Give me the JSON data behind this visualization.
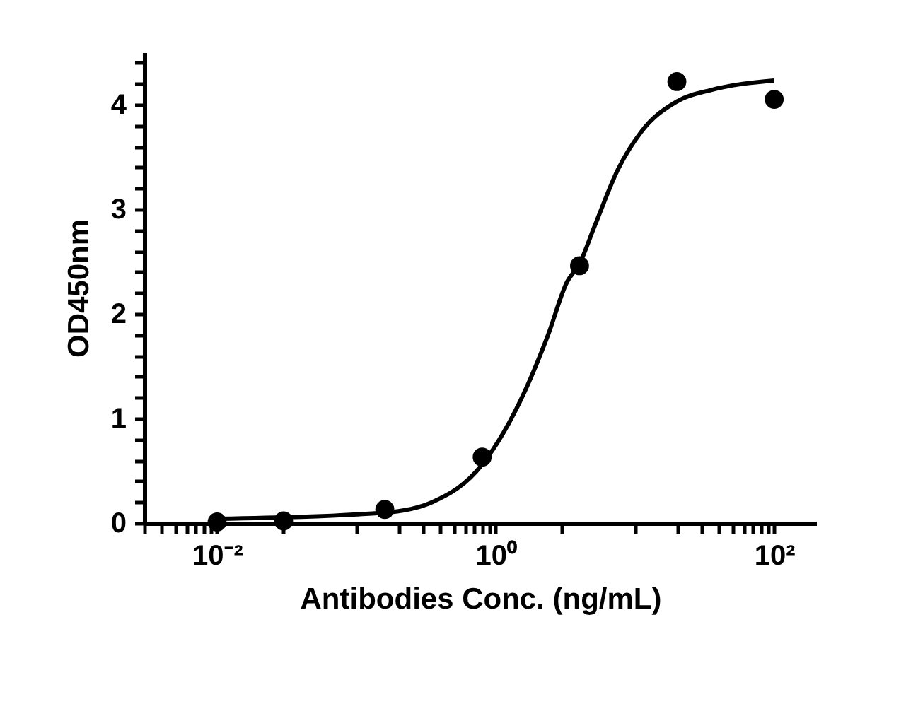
{
  "chart_data": {
    "type": "scatter",
    "xlabel": "Antibodies Conc. (ng/mL)",
    "ylabel": "OD450nm",
    "log": "x",
    "grid": false,
    "marker": "circle",
    "xlim": [
      0.003,
      200
    ],
    "xticks": [
      {
        "value": 0.003,
        "label": null
      },
      {
        "value": 0.004,
        "label": null
      },
      {
        "value": 0.005,
        "label": null
      },
      {
        "value": 0.006,
        "label": null
      },
      {
        "value": 0.007,
        "label": null
      },
      {
        "value": 0.008,
        "label": null
      },
      {
        "value": 0.009,
        "label": null
      },
      {
        "value": 0.01,
        "label": "10⁻²"
      },
      {
        "value": 0.03,
        "label": null
      },
      {
        "value": 0.1,
        "label": null
      },
      {
        "value": 0.2,
        "label": null
      },
      {
        "value": 0.3,
        "label": null
      },
      {
        "value": 0.4,
        "label": null
      },
      {
        "value": 0.5,
        "label": null
      },
      {
        "value": 0.6,
        "label": null
      },
      {
        "value": 0.7,
        "label": null
      },
      {
        "value": 0.8,
        "label": null
      },
      {
        "value": 0.9,
        "label": null
      },
      {
        "value": 1,
        "label": "10⁰"
      },
      {
        "value": 3,
        "label": null
      },
      {
        "value": 10,
        "label": null
      },
      {
        "value": 20,
        "label": null
      },
      {
        "value": 30,
        "label": null
      },
      {
        "value": 40,
        "label": null
      },
      {
        "value": 50,
        "label": null
      },
      {
        "value": 60,
        "label": null
      },
      {
        "value": 70,
        "label": null
      },
      {
        "value": 80,
        "label": null
      },
      {
        "value": 90,
        "label": null
      },
      {
        "value": 100,
        "label": "10²"
      }
    ],
    "ylim": [
      0,
      4.5
    ],
    "yticks": [
      0,
      {
        "value": 0.2,
        "label": null
      },
      {
        "value": 0.4,
        "label": null
      },
      {
        "value": 0.6,
        "label": null
      },
      {
        "value": 0.8,
        "label": null
      },
      1,
      {
        "value": 1.2,
        "label": null
      },
      {
        "value": 1.4,
        "label": null
      },
      {
        "value": 1.6,
        "label": null
      },
      {
        "value": 1.8,
        "label": null
      },
      2,
      {
        "value": 2.2,
        "label": null
      },
      {
        "value": 2.4,
        "label": null
      },
      {
        "value": 2.6,
        "label": null
      },
      {
        "value": 2.8,
        "label": null
      },
      3,
      {
        "value": 3.2,
        "label": null
      },
      {
        "value": 3.4,
        "label": null
      },
      {
        "value": 3.6,
        "label": null
      },
      {
        "value": 3.8,
        "label": null
      },
      4,
      {
        "value": 4.2,
        "label": null
      },
      {
        "value": 4.4,
        "label": null
      }
    ],
    "series": [
      {
        "color": "#000000",
        "x": [
          0.01,
          0.03,
          0.16,
          0.8,
          4,
          20,
          100
        ],
        "values": [
          0.01,
          0.02,
          0.13,
          0.63,
          2.46,
          4.22,
          4.05
        ]
      },
      {
        "type": "line",
        "color": "#000000",
        "marker": "none",
        "line_style": "solid",
        "x": [
          0.01,
          0.16,
          0.35,
          0.8,
          1.62,
          2.38,
          3.24,
          4,
          5.14,
          7.55,
          11.1,
          20,
          35.3,
          100
        ],
        "values": [
          0.04,
          0.1,
          0.2,
          0.56,
          1.26,
          1.8,
          2.3,
          2.48,
          2.84,
          3.38,
          3.74,
          4.03,
          4.14,
          4.23
        ]
      }
    ]
  }
}
